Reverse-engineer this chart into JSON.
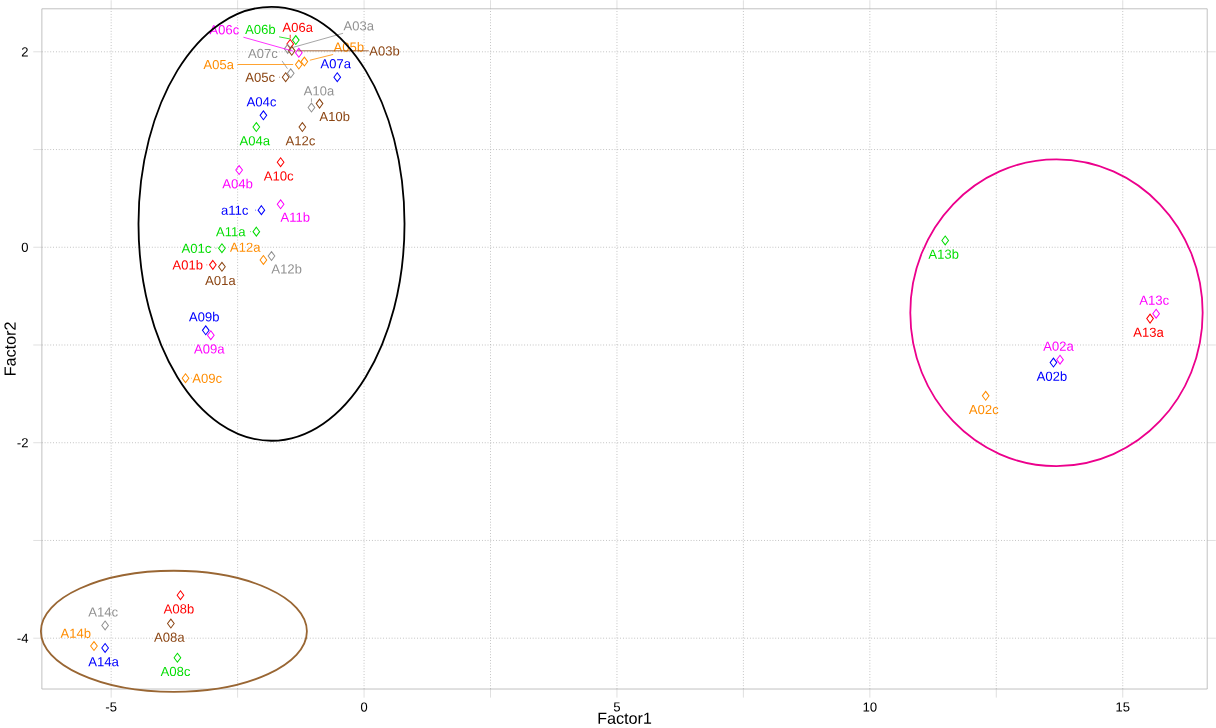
{
  "chart_data": {
    "type": "scatter",
    "xlabel": "Factor1",
    "ylabel": "Factor2",
    "marker": "diamond",
    "grid": true,
    "xlim": [
      -6.37,
      16.67
    ],
    "ylim": [
      -4.52,
      2.44
    ],
    "xticks": [
      -5,
      {
        "value": -2.5,
        "label": null
      },
      0,
      {
        "value": 2.5,
        "label": null
      },
      5,
      {
        "value": 7.5,
        "label": null
      },
      10,
      {
        "value": 12.5,
        "label": null
      },
      15
    ],
    "yticks": [
      -4,
      {
        "value": -3,
        "label": null
      },
      -2,
      {
        "value": -1,
        "label": null
      },
      0,
      {
        "value": 1,
        "label": null
      },
      2
    ],
    "x": [
      -1.99,
      -2.13,
      -1.22,
      -0.88,
      -1.04,
      -1.65,
      -2.47,
      -1.65,
      -2.03,
      -2.13,
      -2.81,
      -2.99,
      -2.81,
      -1.83,
      -1.99,
      -3.13,
      -3.03,
      -3.53,
      -0.53,
      -1.55,
      -1.45,
      -1.46,
      -1.35,
      -1.51,
      -1.43,
      -1.29,
      -1.29,
      -1.18,
      -3.63,
      -3.82,
      -3.69,
      -5.12,
      -5.34,
      -5.12,
      11.49,
      15.66,
      15.54,
      13.63,
      13.76,
      12.29
    ],
    "values": [
      1.35,
      1.23,
      1.23,
      1.47,
      1.43,
      0.87,
      0.79,
      0.44,
      0.38,
      0.16,
      -0.01,
      -0.18,
      -0.2,
      -0.09,
      -0.13,
      -0.85,
      -0.9,
      -1.34,
      1.74,
      1.74,
      1.78,
      2.08,
      2.12,
      2.03,
      2.01,
      1.99,
      1.87,
      1.9,
      -3.56,
      -3.85,
      -4.2,
      -3.87,
      -4.08,
      -4.1,
      0.07,
      -0.68,
      -0.73,
      -1.18,
      -1.15,
      -1.52
    ],
    "colors": [
      "#0000ff",
      "#00dd00",
      "#8b4513",
      "#8b4513",
      "#909090",
      "#ff0000",
      "#ff00ff",
      "#ff00ff",
      "#0000ff",
      "#00dd00",
      "#00dd00",
      "#ff0000",
      "#8b4513",
      "#909090",
      "#ff8c00",
      "#0000ff",
      "#ff00ff",
      "#ff8c00",
      "#0000ff",
      "#8b4513",
      "#909090",
      "#ff0000",
      "#00dd00",
      "#909090",
      "#8b4513",
      "#ff00ff",
      "#ff8c00",
      "#ff8c00",
      "#ff0000",
      "#8b4513",
      "#00dd00",
      "#909090",
      "#ff8c00",
      "#0000ff",
      "#00dd00",
      "#ff00ff",
      "#ff0000",
      "#0000ff",
      "#ff00ff",
      "#ff8c00"
    ],
    "annotations": [
      {
        "text": "A04c",
        "x": -1.99,
        "y": 1.35
      },
      {
        "text": "A04a",
        "x": -2.13,
        "y": 1.23
      },
      {
        "text": "A12c",
        "x": -1.22,
        "y": 1.23
      },
      {
        "text": "A10b",
        "x": -0.88,
        "y": 1.47
      },
      {
        "text": "A10a",
        "x": -1.04,
        "y": 1.43
      },
      {
        "text": "A10c",
        "x": -1.65,
        "y": 0.87
      },
      {
        "text": "A04b",
        "x": -2.47,
        "y": 0.79
      },
      {
        "text": "A11b",
        "x": -1.65,
        "y": 0.44
      },
      {
        "text": "a11c",
        "x": -2.03,
        "y": 0.38
      },
      {
        "text": "A11a",
        "x": -2.13,
        "y": 0.16
      },
      {
        "text": "A01c",
        "x": -2.81,
        "y": -0.01
      },
      {
        "text": "A01b",
        "x": -2.99,
        "y": -0.18
      },
      {
        "text": "A01a",
        "x": -2.81,
        "y": -0.2
      },
      {
        "text": "A12b",
        "x": -1.83,
        "y": -0.09
      },
      {
        "text": "A12a",
        "x": -1.99,
        "y": -0.13
      },
      {
        "text": "A09b",
        "x": -3.13,
        "y": -0.85
      },
      {
        "text": "A09a",
        "x": -3.03,
        "y": -0.9
      },
      {
        "text": "A09c",
        "x": -3.53,
        "y": -1.34
      },
      {
        "text": "A07a",
        "x": -0.53,
        "y": 1.74
      },
      {
        "text": "A05c",
        "x": -1.55,
        "y": 1.74
      },
      {
        "text": "A07c",
        "x": -1.45,
        "y": 1.78
      },
      {
        "text": "A06a",
        "x": -1.46,
        "y": 2.08
      },
      {
        "text": "A06b",
        "x": -1.35,
        "y": 2.12
      },
      {
        "text": "A03a",
        "x": -1.51,
        "y": 2.03
      },
      {
        "text": "A03b",
        "x": -1.43,
        "y": 2.01
      },
      {
        "text": "A06c",
        "x": -1.29,
        "y": 1.99
      },
      {
        "text": "A05a",
        "x": -1.29,
        "y": 1.87
      },
      {
        "text": "A05b",
        "x": -1.18,
        "y": 1.9
      },
      {
        "text": "A08b",
        "x": -3.63,
        "y": -3.56
      },
      {
        "text": "A08a",
        "x": -3.82,
        "y": -3.85
      },
      {
        "text": "A08c",
        "x": -3.69,
        "y": -4.2
      },
      {
        "text": "A14c",
        "x": -5.12,
        "y": -3.87
      },
      {
        "text": "A14b",
        "x": -5.34,
        "y": -4.08
      },
      {
        "text": "A14a",
        "x": -5.12,
        "y": -4.1
      },
      {
        "text": "A13b",
        "x": 11.49,
        "y": 0.07
      },
      {
        "text": "A13c",
        "x": 15.66,
        "y": -0.68
      },
      {
        "text": "A13a",
        "x": 15.54,
        "y": -0.73
      },
      {
        "text": "A02b",
        "x": 13.63,
        "y": -1.18
      },
      {
        "text": "A02a",
        "x": 13.76,
        "y": -1.15
      },
      {
        "text": "A02c",
        "x": 12.29,
        "y": -1.52
      }
    ]
  }
}
